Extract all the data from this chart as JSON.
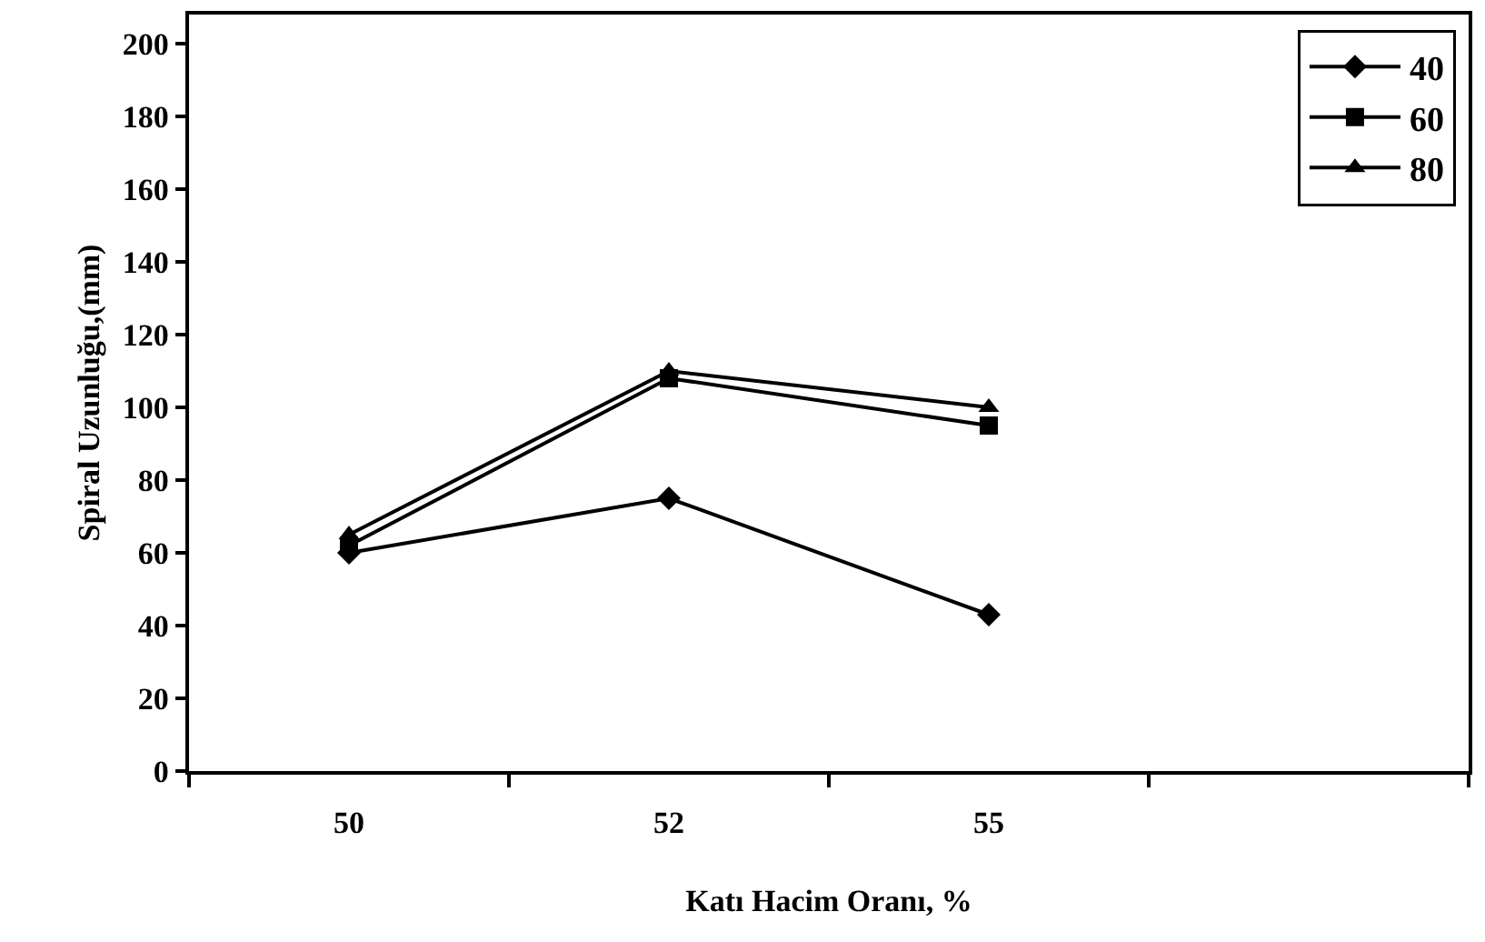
{
  "chart_data": {
    "type": "line",
    "xlabel": "Katı Hacim Oranı, %",
    "ylabel": "Spiral Uzunluğu,(mm)",
    "categories": [
      "50",
      "52",
      "55",
      null
    ],
    "series": [
      {
        "name": "40",
        "color": "#000000",
        "marker": "diamond",
        "values": [
          60,
          75,
          43,
          null
        ]
      },
      {
        "name": "60",
        "color": "#000000",
        "marker": "square",
        "values": [
          62,
          108,
          95,
          null
        ]
      },
      {
        "name": "80",
        "color": "#000000",
        "marker": "triangle",
        "values": [
          65,
          110,
          100,
          null
        ]
      }
    ],
    "ylim": [
      0,
      208
    ],
    "yticks": [
      0,
      20,
      40,
      60,
      80,
      100,
      120,
      140,
      160,
      180,
      200
    ],
    "grid": false,
    "legend": "top right",
    "line_style": "solid"
  }
}
